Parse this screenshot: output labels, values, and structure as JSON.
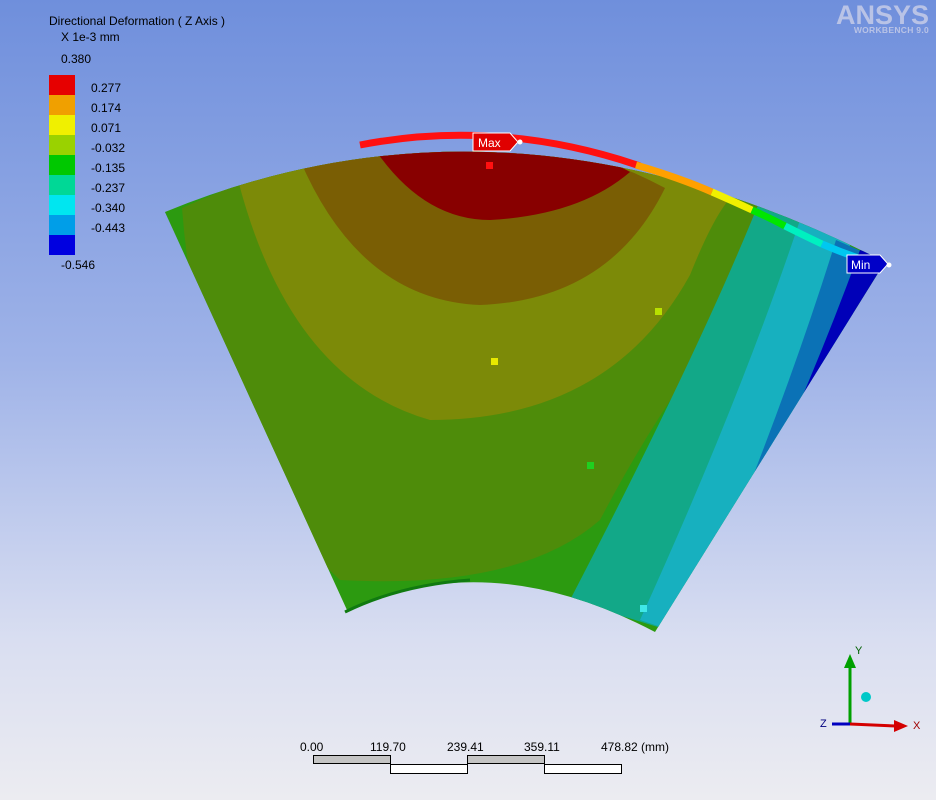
{
  "legend": {
    "title": "Directional Deformation ( Z Axis )",
    "units": "X 1e-3 mm",
    "max_value": "0.380",
    "min_value": "-0.546",
    "levels": [
      {
        "value": "0.277",
        "color": "#e60000"
      },
      {
        "value": "0.174",
        "color": "#f0a000"
      },
      {
        "value": "0.071",
        "color": "#f0f000"
      },
      {
        "value": "-0.032",
        "color": "#9ad200"
      },
      {
        "value": "-0.135",
        "color": "#00c800"
      },
      {
        "value": "-0.237",
        "color": "#00d896"
      },
      {
        "value": "-0.340",
        "color": "#00e6f0"
      },
      {
        "value": "-0.443",
        "color": "#009ee8"
      },
      {
        "value": "",
        "color": "#0000e0"
      }
    ]
  },
  "logo": {
    "brand": "ANSYS",
    "product": "WORKBENCH 9.0"
  },
  "markers": {
    "max_label": "Max",
    "min_label": "Min"
  },
  "scale_bar": {
    "ticks": [
      "0.00",
      "119.70",
      "239.41",
      "359.11",
      "478.82 (mm)"
    ]
  },
  "triad": {
    "x_label": "X",
    "y_label": "Y",
    "z_label": "Z"
  },
  "colors": {
    "x_axis": "#d40000",
    "y_axis": "#00a000",
    "z_dot": "#00c8c8"
  }
}
